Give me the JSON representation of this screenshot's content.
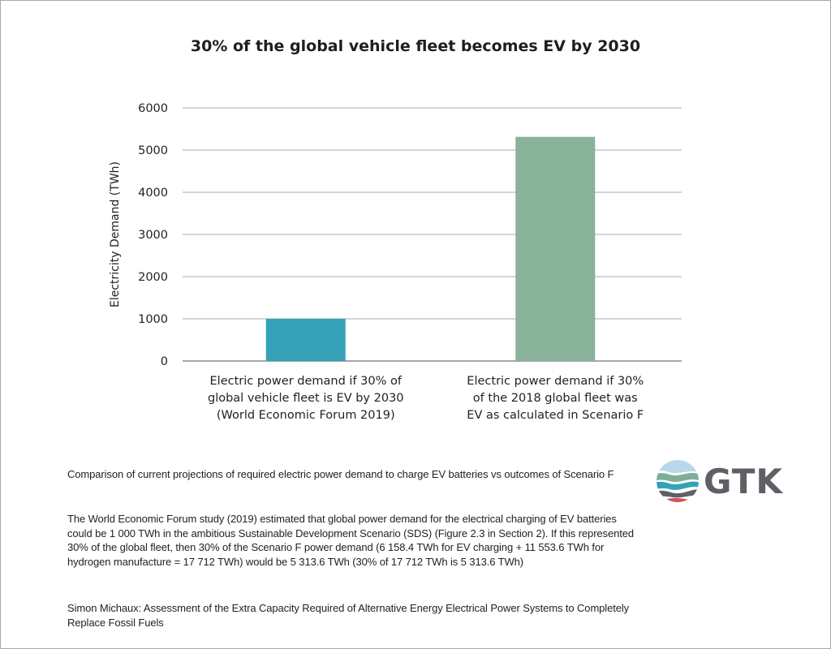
{
  "chart_data": {
    "type": "bar",
    "title": "30% of the global vehicle fleet becomes EV by 2030",
    "xlabel": "",
    "ylabel": "Electricity Demand (TWh)",
    "ylim": [
      0,
      6000
    ],
    "yticks": [
      0,
      1000,
      2000,
      3000,
      4000,
      5000,
      6000
    ],
    "grid": true,
    "categories": [
      [
        "Electric power demand if 30% of",
        "global vehicle fleet is EV by 2030",
        "(World Economic Forum 2019)"
      ],
      [
        "Electric power demand if 30%",
        "of the 2018 global fleet was",
        "EV as calculated in Scenario F"
      ]
    ],
    "values": [
      1000,
      5313.6
    ],
    "colors": [
      "#35a1b8",
      "#89b29b"
    ]
  },
  "captions": {
    "summary": "Comparison of current projections of required electric power demand to charge EV batteries vs outcomes of Scenario F",
    "detail": "The World Economic Forum study (2019) estimated that global power demand for the electrical charging of EV batteries could be 1 000 TWh in the ambitious Sustainable Development Scenario (SDS) (Figure 2.3 in Section 2). If this represented 30% of the global fleet, then 30% of the Scenario F power demand (6 158.4 TWh for EV charging + 11 553.6 TWh for hydrogen manufacture = 17 712 TWh) would be 5 313.6 TWh (30% of 17 712 TWh is 5 313.6 TWh)",
    "source": "Simon Michaux: Assessment of the Extra Capacity Required of Alternative Energy Electrical Power Systems to Completely Replace Fossil Fuels"
  },
  "logo": {
    "text": "GTK",
    "colors": [
      "#b9d7ea",
      "#7fae96",
      "#35a1b8",
      "#5d6064",
      "#d2535a"
    ]
  }
}
